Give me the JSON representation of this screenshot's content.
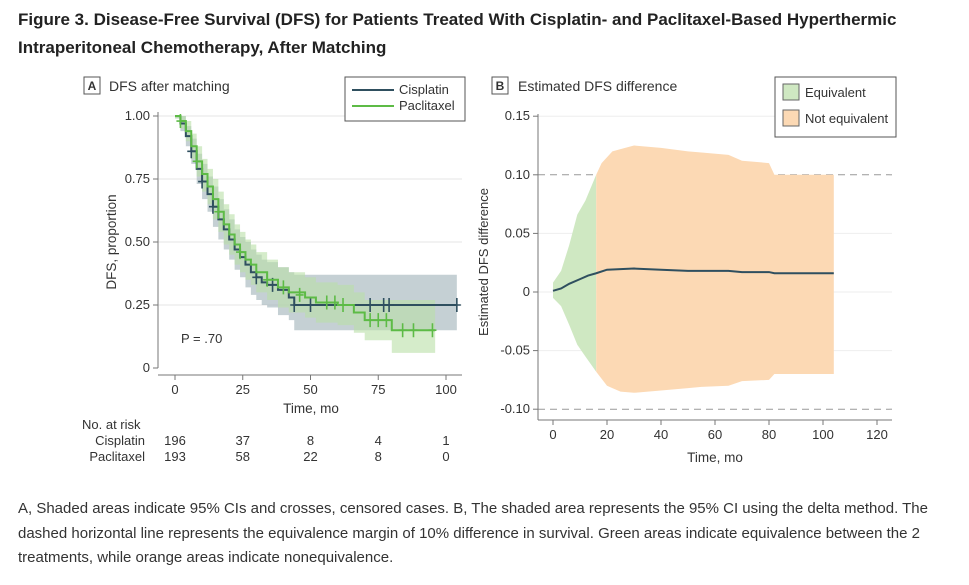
{
  "figure": {
    "title": "Figure 3.  Disease-Free Survival (DFS) for Patients Treated With Cisplatin- and Paclitaxel-Based Hyperthermic Intraperitoneal Chemotherapy, After Matching",
    "caption": "A, Shaded areas indicate 95% CIs and crosses, censored cases. B, The shaded area represents the 95% CI using the delta method. The dashed horizontal line represents the equivalence margin of 10% difference in survival. Green areas indicate equivalence between the 2 treatments, while orange areas indicate nonequivalence."
  },
  "chart_data": [
    {
      "type": "line",
      "panel": "A",
      "title": "DFS after matching",
      "xlabel": "Time, mo",
      "ylabel": "DFS, proportion",
      "xlim": [
        0,
        104
      ],
      "ylim": [
        0,
        1
      ],
      "xticks": [
        "0",
        "25",
        "50",
        "75",
        "100"
      ],
      "yticks": [
        "0",
        "0.25",
        "0.50",
        "0.75",
        "1.00"
      ],
      "grid": true,
      "legend": "top-right",
      "annotation": "P = .70",
      "series": [
        {
          "name": "Cisplatin",
          "color": "#2f4f5f",
          "band_color": "#9fb0b8",
          "points": [
            [
              0,
              1
            ],
            [
              2,
              0.97
            ],
            [
              4,
              0.92
            ],
            [
              6,
              0.86
            ],
            [
              8,
              0.79
            ],
            [
              10,
              0.74
            ],
            [
              12,
              0.69
            ],
            [
              14,
              0.64
            ],
            [
              16,
              0.59
            ],
            [
              18,
              0.55
            ],
            [
              20,
              0.51
            ],
            [
              22,
              0.47
            ],
            [
              24,
              0.44
            ],
            [
              26,
              0.41
            ],
            [
              28,
              0.38
            ],
            [
              30,
              0.36
            ],
            [
              32,
              0.34
            ],
            [
              34,
              0.33
            ],
            [
              38,
              0.31
            ],
            [
              42,
              0.28
            ],
            [
              44,
              0.25
            ],
            [
              104,
              0.25
            ]
          ],
          "ci": [
            [
              0,
              0.99,
              1
            ],
            [
              2,
              0.94,
              1
            ],
            [
              4,
              0.88,
              0.96
            ],
            [
              6,
              0.81,
              0.91
            ],
            [
              8,
              0.73,
              0.85
            ],
            [
              10,
              0.67,
              0.81
            ],
            [
              12,
              0.62,
              0.76
            ],
            [
              14,
              0.56,
              0.72
            ],
            [
              16,
              0.51,
              0.67
            ],
            [
              18,
              0.47,
              0.63
            ],
            [
              20,
              0.43,
              0.59
            ],
            [
              22,
              0.39,
              0.55
            ],
            [
              24,
              0.36,
              0.52
            ],
            [
              26,
              0.32,
              0.5
            ],
            [
              28,
              0.29,
              0.47
            ],
            [
              30,
              0.27,
              0.45
            ],
            [
              32,
              0.25,
              0.43
            ],
            [
              34,
              0.24,
              0.42
            ],
            [
              38,
              0.21,
              0.4
            ],
            [
              42,
              0.19,
              0.38
            ],
            [
              44,
              0.15,
              0.37
            ],
            [
              104,
              0.15,
              0.37
            ]
          ],
          "censored": [
            [
              6,
              0.86
            ],
            [
              10,
              0.74
            ],
            [
              14,
              0.64
            ],
            [
              30,
              0.36
            ],
            [
              36,
              0.33
            ],
            [
              44,
              0.25
            ],
            [
              50,
              0.25
            ],
            [
              72,
              0.25
            ],
            [
              77,
              0.25
            ],
            [
              79,
              0.25
            ],
            [
              104,
              0.25
            ]
          ]
        },
        {
          "name": "Paclitaxel",
          "color": "#5dbb46",
          "band_color": "#b9e0a6",
          "points": [
            [
              0,
              1
            ],
            [
              2,
              0.98
            ],
            [
              4,
              0.94
            ],
            [
              6,
              0.88
            ],
            [
              8,
              0.82
            ],
            [
              10,
              0.77
            ],
            [
              12,
              0.72
            ],
            [
              14,
              0.67
            ],
            [
              16,
              0.62
            ],
            [
              18,
              0.57
            ],
            [
              20,
              0.53
            ],
            [
              22,
              0.49
            ],
            [
              24,
              0.46
            ],
            [
              26,
              0.43
            ],
            [
              28,
              0.41
            ],
            [
              30,
              0.38
            ],
            [
              34,
              0.35
            ],
            [
              38,
              0.32
            ],
            [
              42,
              0.3
            ],
            [
              48,
              0.28
            ],
            [
              52,
              0.26
            ],
            [
              60,
              0.25
            ],
            [
              66,
              0.22
            ],
            [
              70,
              0.19
            ],
            [
              80,
              0.15
            ],
            [
              96,
              0.15
            ]
          ],
          "ci": [
            [
              0,
              0.99,
              1
            ],
            [
              2,
              0.95,
              1
            ],
            [
              4,
              0.9,
              0.98
            ],
            [
              6,
              0.83,
              0.93
            ],
            [
              8,
              0.76,
              0.88
            ],
            [
              10,
              0.7,
              0.83
            ],
            [
              12,
              0.65,
              0.79
            ],
            [
              14,
              0.59,
              0.75
            ],
            [
              16,
              0.54,
              0.7
            ],
            [
              18,
              0.49,
              0.65
            ],
            [
              20,
              0.45,
              0.61
            ],
            [
              22,
              0.41,
              0.57
            ],
            [
              24,
              0.38,
              0.54
            ],
            [
              26,
              0.35,
              0.51
            ],
            [
              28,
              0.33,
              0.49
            ],
            [
              30,
              0.3,
              0.46
            ],
            [
              34,
              0.27,
              0.43
            ],
            [
              38,
              0.24,
              0.4
            ],
            [
              42,
              0.22,
              0.38
            ],
            [
              48,
              0.2,
              0.36
            ],
            [
              52,
              0.18,
              0.34
            ],
            [
              60,
              0.17,
              0.33
            ],
            [
              66,
              0.14,
              0.3
            ],
            [
              70,
              0.11,
              0.27
            ],
            [
              80,
              0.06,
              0.27
            ],
            [
              96,
              0.06,
              0.27
            ]
          ],
          "censored": [
            [
              2,
              0.98
            ],
            [
              8,
              0.82
            ],
            [
              16,
              0.62
            ],
            [
              24,
              0.46
            ],
            [
              34,
              0.35
            ],
            [
              40,
              0.32
            ],
            [
              46,
              0.29
            ],
            [
              56,
              0.26
            ],
            [
              59,
              0.26
            ],
            [
              62,
              0.25
            ],
            [
              72,
              0.19
            ],
            [
              75,
              0.19
            ],
            [
              78,
              0.19
            ],
            [
              84,
              0.15
            ],
            [
              88,
              0.15
            ],
            [
              95,
              0.15
            ]
          ]
        }
      ],
      "risk_table": {
        "label": "No. at risk",
        "times": [
          "0",
          "25",
          "50",
          "75",
          "100"
        ],
        "rows": [
          {
            "name": "Cisplatin",
            "values": [
              "196",
              "37",
              "8",
              "4",
              "1"
            ]
          },
          {
            "name": "Paclitaxel",
            "values": [
              "193",
              "58",
              "22",
              "8",
              "0"
            ]
          }
        ]
      }
    },
    {
      "type": "area",
      "panel": "B",
      "title": "Estimated DFS difference",
      "xlabel": "Time, mo",
      "ylabel": "Estimated DFS difference",
      "xlim": [
        0,
        120
      ],
      "ylim": [
        -0.1,
        0.15
      ],
      "xticks": [
        "0",
        "20",
        "40",
        "60",
        "80",
        "100",
        "120"
      ],
      "yticks": [
        "-0.10",
        "-0.05",
        "0",
        "0.05",
        "0.10",
        "0.15"
      ],
      "grid": true,
      "legend": "top-right",
      "equivalence_margin": [
        -0.1,
        0.1
      ],
      "equivalence_until": 16,
      "legend_items": [
        {
          "name": "Equivalent",
          "color": "#cfe8c2"
        },
        {
          "name": "Not equivalent",
          "color": "#fcd9b4"
        }
      ],
      "estimate": [
        [
          0,
          0.001
        ],
        [
          3,
          0.003
        ],
        [
          6,
          0.007
        ],
        [
          10,
          0.011
        ],
        [
          13,
          0.014
        ],
        [
          16,
          0.016
        ],
        [
          20,
          0.019
        ],
        [
          30,
          0.02
        ],
        [
          40,
          0.019
        ],
        [
          50,
          0.018
        ],
        [
          65,
          0.018
        ],
        [
          70,
          0.017
        ],
        [
          80,
          0.017
        ],
        [
          82,
          0.016
        ],
        [
          104,
          0.016
        ]
      ],
      "ci_upper": [
        [
          0,
          0.008
        ],
        [
          3,
          0.018
        ],
        [
          6,
          0.04
        ],
        [
          9,
          0.066
        ],
        [
          12,
          0.078
        ],
        [
          16,
          0.1
        ],
        [
          18,
          0.11
        ],
        [
          22,
          0.12
        ],
        [
          30,
          0.125
        ],
        [
          40,
          0.123
        ],
        [
          50,
          0.12
        ],
        [
          65,
          0.117
        ],
        [
          70,
          0.112
        ],
        [
          80,
          0.11
        ],
        [
          82,
          0.1
        ],
        [
          104,
          0.1
        ]
      ],
      "ci_lower": [
        [
          0,
          -0.005
        ],
        [
          3,
          -0.012
        ],
        [
          6,
          -0.028
        ],
        [
          9,
          -0.045
        ],
        [
          12,
          -0.055
        ],
        [
          16,
          -0.068
        ],
        [
          20,
          -0.08
        ],
        [
          25,
          -0.085
        ],
        [
          30,
          -0.086
        ],
        [
          40,
          -0.084
        ],
        [
          55,
          -0.081
        ],
        [
          65,
          -0.08
        ],
        [
          70,
          -0.076
        ],
        [
          80,
          -0.075
        ],
        [
          82,
          -0.07
        ],
        [
          104,
          -0.07
        ]
      ],
      "line_color": "#2f4f5f"
    }
  ]
}
